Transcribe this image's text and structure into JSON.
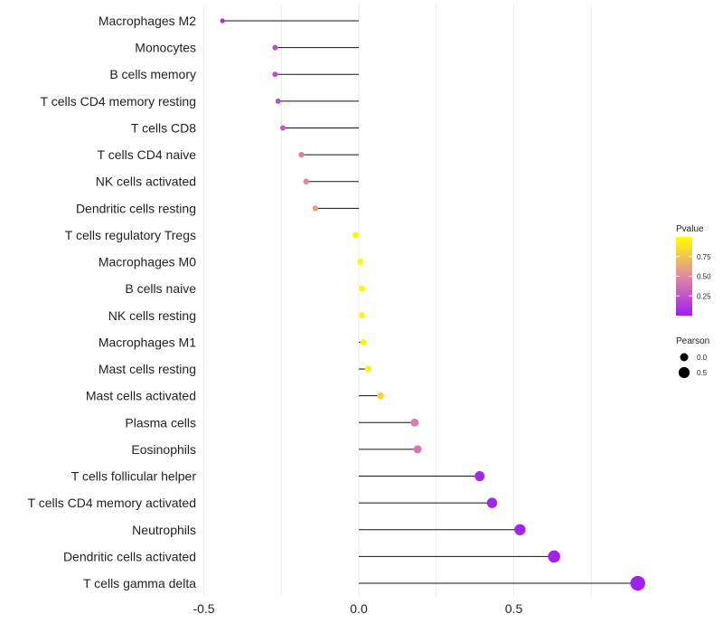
{
  "chart_data": {
    "type": "lollipop",
    "title": "",
    "xlabel": "",
    "ylabel": "",
    "xlim": [
      -0.5,
      0.9
    ],
    "x_ticks": [
      {
        "value": -0.5,
        "label": "-0.5"
      },
      {
        "value": 0.0,
        "label": "0.0"
      },
      {
        "value": 0.5,
        "label": "0.5"
      }
    ],
    "grid": true,
    "categories": [
      "Macrophages M2",
      "Monocytes",
      "B cells memory",
      "T cells CD4 memory resting",
      "T cells CD8",
      "T cells CD4 naive",
      "NK cells activated",
      "Dendritic cells resting",
      "T cells regulatory  Tregs ",
      "Macrophages M0",
      "B cells naive",
      "NK cells resting",
      "Macrophages M1",
      "Mast cells resting",
      "Mast cells activated",
      "Plasma cells",
      "Eosinophils",
      "T cells follicular helper",
      "T cells CD4 memory activated",
      "Neutrophils",
      "Dendritic cells activated",
      "T cells gamma delta"
    ],
    "series": [
      {
        "name": "Pearson",
        "values": [
          -0.44,
          -0.27,
          -0.27,
          -0.26,
          -0.245,
          -0.185,
          -0.17,
          -0.14,
          -0.01,
          0.005,
          0.01,
          0.01,
          0.015,
          0.03,
          0.07,
          0.18,
          0.19,
          0.39,
          0.43,
          0.52,
          0.63,
          0.9
        ]
      },
      {
        "name": "Pvalue",
        "values": [
          0.08,
          0.2,
          0.22,
          0.22,
          0.27,
          0.45,
          0.48,
          0.6,
          0.98,
          0.96,
          0.97,
          0.97,
          0.95,
          0.93,
          0.82,
          0.45,
          0.42,
          0.04,
          0.03,
          0.02,
          0.01,
          0.001
        ]
      }
    ],
    "legend": {
      "position": "right",
      "color": {
        "title": "Pvalue",
        "ticks": [
          "0.75",
          "0.50",
          "0.25"
        ],
        "tick_values": [
          0.75,
          0.5,
          0.25
        ],
        "low_color": "#a020f0",
        "mid_color": "#e08aa0",
        "high_color": "#ffff00"
      },
      "size": {
        "title": "Pearson",
        "entries": [
          {
            "label": "0.0",
            "value": 0.0
          },
          {
            "label": "0.5",
            "value": 0.5
          }
        ]
      }
    }
  }
}
